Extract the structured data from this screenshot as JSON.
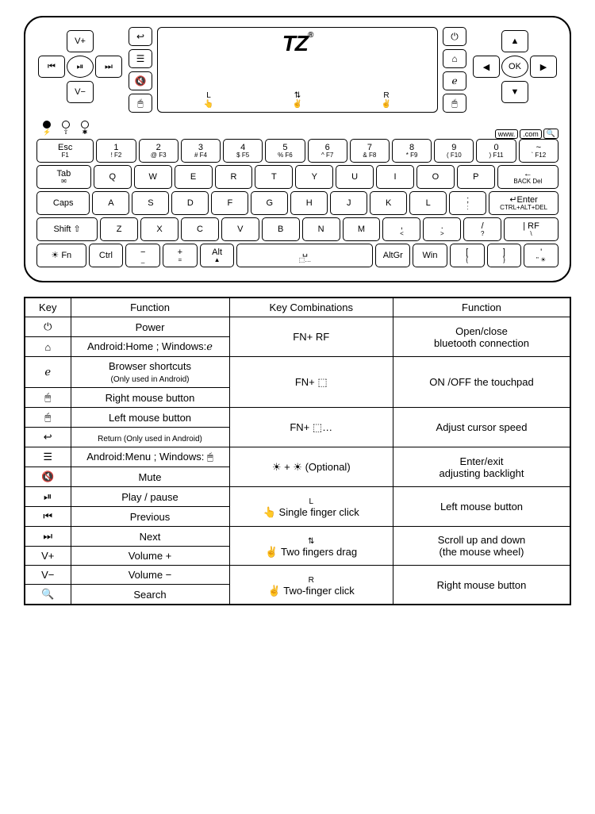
{
  "device": {
    "media_diamond": {
      "n": "V+",
      "s": "V−",
      "w": "⏮",
      "e": "⏭",
      "c": "⏯"
    },
    "left_column": [
      "↩",
      "☰",
      "🔇",
      "🖱"
    ],
    "right_column": [
      "⏻",
      "⌂",
      "ℯ",
      "🖱"
    ],
    "nav_diamond": {
      "n": "▲",
      "s": "▼",
      "w": "◀",
      "e": "▶",
      "c": "OK"
    },
    "touchpad": {
      "logo": "TZ",
      "reg": "®",
      "g1": "L",
      "g2": "⇅",
      "g3": "R"
    },
    "url_buttons": [
      "www.",
      ".com",
      "🔍"
    ],
    "rows": [
      [
        {
          "t": "Esc",
          "s": "F1",
          "w": 1.3
        },
        {
          "t": "1",
          "s": "! F2"
        },
        {
          "t": "2",
          "s": "@ F3"
        },
        {
          "t": "3",
          "s": "# F4"
        },
        {
          "t": "4",
          "s": "$ F5"
        },
        {
          "t": "5",
          "s": "% F6"
        },
        {
          "t": "6",
          "s": "^ F7"
        },
        {
          "t": "7",
          "s": "& F8"
        },
        {
          "t": "8",
          "s": "* F9"
        },
        {
          "t": "9",
          "s": "( F10"
        },
        {
          "t": "0",
          "s": ") F11"
        },
        {
          "t": "~",
          "s": "` F12"
        }
      ],
      [
        {
          "t": "Tab",
          "s": "✉",
          "w": 1.3
        },
        {
          "t": "Q"
        },
        {
          "t": "W"
        },
        {
          "t": "E"
        },
        {
          "t": "R"
        },
        {
          "t": "T"
        },
        {
          "t": "Y"
        },
        {
          "t": "U"
        },
        {
          "t": "I"
        },
        {
          "t": "O"
        },
        {
          "t": "P"
        },
        {
          "t": "←",
          "s": "BACK Del",
          "w": 1.7
        }
      ],
      [
        {
          "t": "Caps",
          "w": 1.5
        },
        {
          "t": "A"
        },
        {
          "t": "S"
        },
        {
          "t": "D"
        },
        {
          "t": "F"
        },
        {
          "t": "G"
        },
        {
          "t": "H"
        },
        {
          "t": "J"
        },
        {
          "t": "K"
        },
        {
          "t": "L"
        },
        {
          "t": ";",
          "s": ":"
        },
        {
          "t": "↵Enter",
          "s": "CTRL+ALT+DEL",
          "w": 1.9
        }
      ],
      [
        {
          "t": "Shift ⇧",
          "w": 1.7
        },
        {
          "t": "Z"
        },
        {
          "t": "X"
        },
        {
          "t": "C"
        },
        {
          "t": "V"
        },
        {
          "t": "B"
        },
        {
          "t": "N"
        },
        {
          "t": "M"
        },
        {
          "t": ",",
          "s": "<"
        },
        {
          "t": ".",
          "s": ">"
        },
        {
          "t": "/",
          "s": "?"
        },
        {
          "t": "| RF",
          "s": "\\",
          "w": 1.5
        }
      ],
      [
        {
          "t": "☀ Fn",
          "w": 1.5
        },
        {
          "t": "Ctrl"
        },
        {
          "t": "−",
          "s": "_"
        },
        {
          "t": "+",
          "s": "="
        },
        {
          "t": "Alt",
          "s": "▲"
        },
        {
          "t": "␣",
          "w": 4.4,
          "s": "⬚…"
        },
        {
          "t": "AltGr"
        },
        {
          "t": "Win"
        },
        {
          "t": "[",
          "s": "{"
        },
        {
          "t": "]",
          "s": "}"
        },
        {
          "t": "'",
          "s": "\" ☀"
        }
      ]
    ]
  },
  "legend": {
    "headers": [
      "Key",
      "Function",
      "Key Combinations",
      "Function"
    ],
    "rows": [
      {
        "sym": "⏻",
        "f": "Power",
        "combo": "FN+ RF",
        "f2": "Open/close\nbluetooth connection",
        "span": 2
      },
      {
        "sym": "⌂",
        "f": "Android:Home ; Windows:ℯ"
      },
      {
        "sym": "ℯ",
        "f": "Browser shortcuts",
        "note": "(Only used in Android)",
        "combo": "FN+ ⬚",
        "f2": "ON /OFF the touchpad",
        "span": 2
      },
      {
        "sym": "🖱",
        "f": "Right mouse button"
      },
      {
        "sym": "🖱",
        "f": "Left mouse button",
        "combo": "FN+ ⬚…",
        "f2": "Adjust cursor speed",
        "span": 2
      },
      {
        "sym": "↩",
        "f": "Return (Only used in Android)",
        "small": true
      },
      {
        "sym": "☰",
        "f": "Android:Menu ; Windows: 🖱",
        "combo": "☀ + ☀ (Optional)",
        "f2": "Enter/exit\nadjusting backlight",
        "span": 2
      },
      {
        "sym": "🔇",
        "f": "Mute"
      },
      {
        "sym": "⏯",
        "f": "Play / pause",
        "combo": "👆 Single finger click",
        "f2": "Left mouse button",
        "span": 2,
        "glab": "L"
      },
      {
        "sym": "⏮",
        "f": "Previous"
      },
      {
        "sym": "⏭",
        "f": "Next",
        "combo": "✌ Two fingers drag",
        "f2": "Scroll up and down\n(the mouse wheel)",
        "span": 2,
        "glab": "⇅"
      },
      {
        "sym": "V+",
        "f": "Volume +"
      },
      {
        "sym": "V−",
        "f": "Volume −",
        "combo": "✌ Two-finger click",
        "f2": "Right mouse button",
        "span": 2,
        "glab": "R"
      },
      {
        "sym": "🔍",
        "f": "Search"
      }
    ]
  }
}
